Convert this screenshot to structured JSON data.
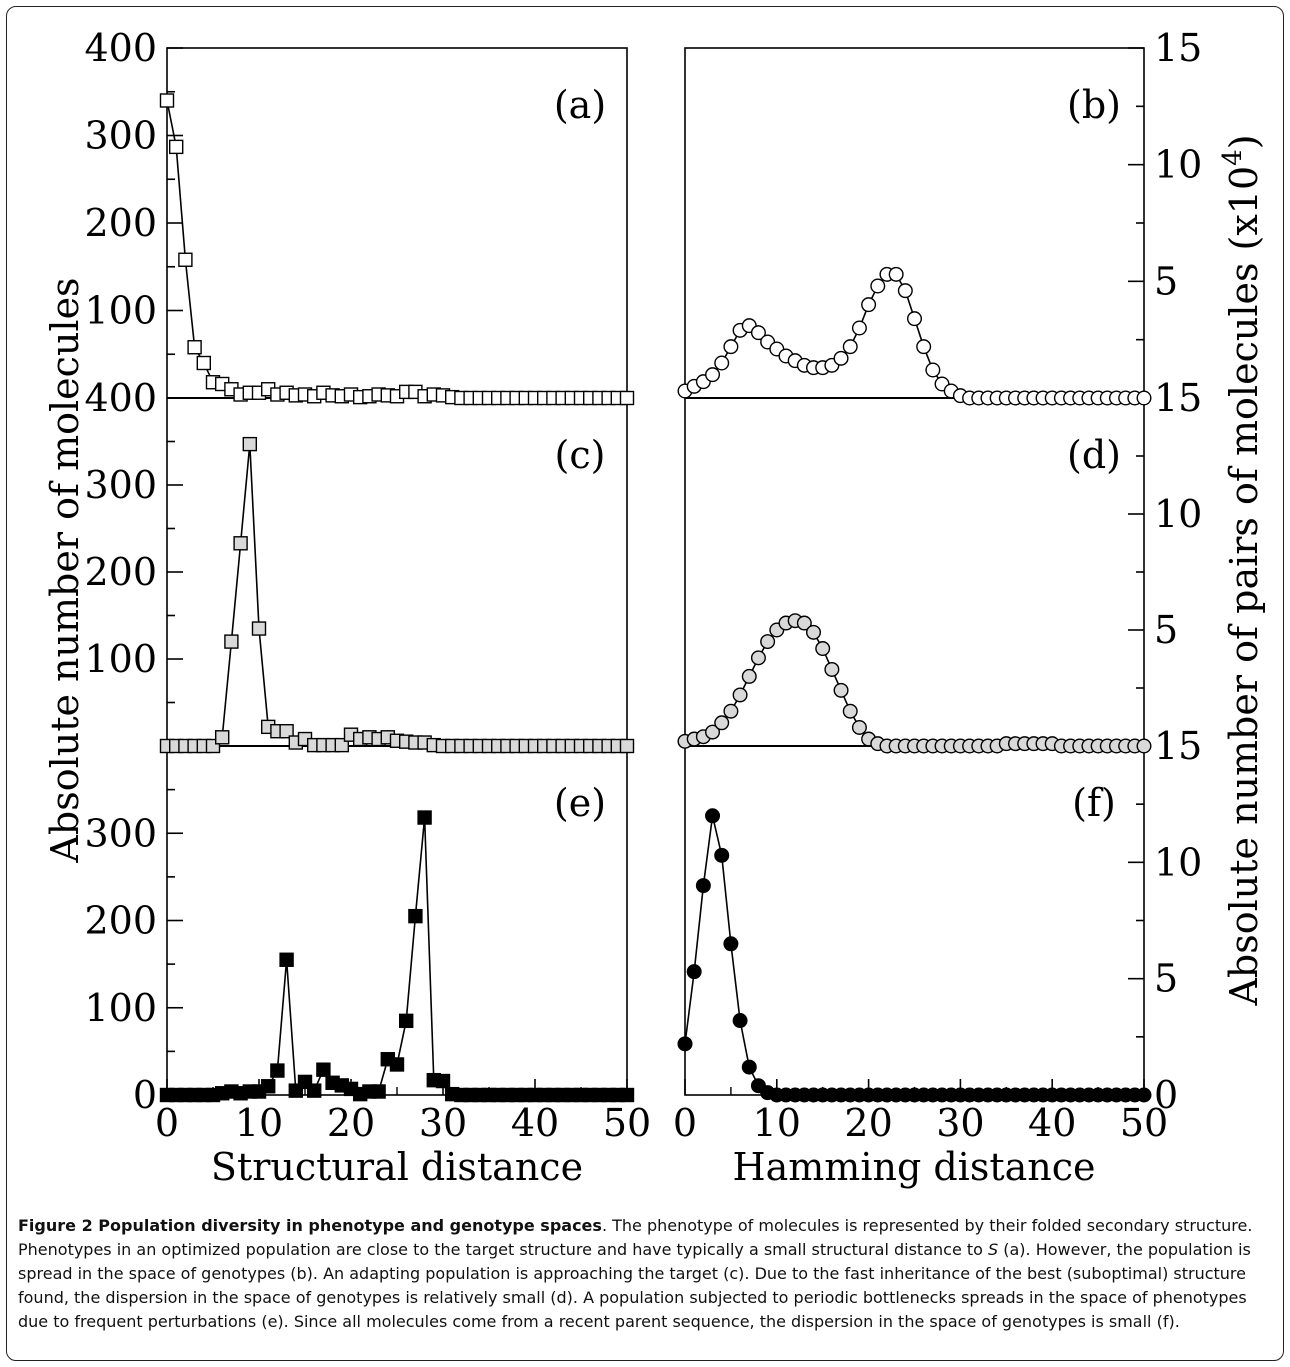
{
  "chart_data": {
    "type": "line",
    "x_label_left": "Structural distance",
    "x_label_right": "Hamming distance",
    "y_label_left": "Absolute number of molecules",
    "y_label_right": "Absolute number of pairs of molecules (x10",
    "y_label_right_exp": "4",
    "y_label_right_close": ")",
    "xlim": [
      0,
      50
    ],
    "left_ylim": [
      0,
      400
    ],
    "right_ylim": [
      0,
      15
    ],
    "x_ticks": [
      "0",
      "10",
      "20",
      "30",
      "40",
      "50"
    ],
    "left_y_ticks_top": [
      "400",
      "300",
      "200",
      "100"
    ],
    "left_y_ticks_mid": [
      "400",
      "300",
      "200",
      "100"
    ],
    "left_y_ticks_bottom": [
      "300",
      "200",
      "100",
      "0"
    ],
    "right_y_ticks_top": [
      "15",
      "10",
      "5"
    ],
    "right_y_ticks_mid": [
      "15",
      "10",
      "5"
    ],
    "right_y_ticks_bottom": [
      "15",
      "10",
      "5",
      "0"
    ],
    "panels": [
      {
        "label": "(a)",
        "side": "left",
        "row": 0,
        "marker": "square",
        "fill": "#ffffff",
        "x": [
          0,
          1,
          2,
          3,
          4,
          5,
          6,
          7,
          8,
          9,
          10,
          11,
          12,
          13,
          14,
          15,
          16,
          17,
          18,
          19,
          20,
          21,
          22,
          23,
          24,
          25,
          26,
          27,
          28,
          29,
          30,
          31,
          32,
          33,
          34,
          35,
          36,
          37,
          38,
          39,
          40,
          41,
          42,
          43,
          44,
          45,
          46,
          47,
          48,
          49,
          50
        ],
        "y": [
          340,
          287,
          158,
          58,
          40,
          18,
          16,
          10,
          4,
          6,
          6,
          10,
          4,
          6,
          3,
          4,
          2,
          6,
          3,
          2,
          4,
          1,
          2,
          4,
          3,
          2,
          7,
          7,
          2,
          4,
          3,
          1,
          0,
          0,
          0,
          0,
          0,
          0,
          0,
          0,
          0,
          0,
          0,
          0,
          0,
          0,
          0,
          0,
          0,
          0,
          0
        ]
      },
      {
        "label": "(b)",
        "side": "right",
        "row": 0,
        "marker": "circle",
        "fill": "#ffffff",
        "x": [
          0,
          1,
          2,
          3,
          4,
          5,
          6,
          7,
          8,
          9,
          10,
          11,
          12,
          13,
          14,
          15,
          16,
          17,
          18,
          19,
          20,
          21,
          22,
          23,
          24,
          25,
          26,
          27,
          28,
          29,
          30,
          31,
          32,
          33,
          34,
          35,
          36,
          37,
          38,
          39,
          40,
          41,
          42,
          43,
          44,
          45,
          46,
          47,
          48,
          49,
          50
        ],
        "y": [
          0.3,
          0.5,
          0.7,
          1.0,
          1.5,
          2.2,
          2.9,
          3.1,
          2.8,
          2.4,
          2.1,
          1.8,
          1.6,
          1.4,
          1.3,
          1.3,
          1.4,
          1.7,
          2.2,
          3.0,
          4.0,
          4.8,
          5.3,
          5.3,
          4.6,
          3.4,
          2.2,
          1.2,
          0.6,
          0.3,
          0.1,
          0,
          0,
          0,
          0,
          0,
          0,
          0,
          0,
          0,
          0,
          0,
          0,
          0,
          0,
          0,
          0,
          0,
          0,
          0,
          0
        ]
      },
      {
        "label": "(c)",
        "side": "left",
        "row": 1,
        "marker": "square",
        "fill": "#d9d9d9",
        "x": [
          0,
          1,
          2,
          3,
          4,
          5,
          6,
          7,
          8,
          9,
          10,
          11,
          12,
          13,
          14,
          15,
          16,
          17,
          18,
          19,
          20,
          21,
          22,
          23,
          24,
          25,
          26,
          27,
          28,
          29,
          30,
          31,
          32,
          33,
          34,
          35,
          36,
          37,
          38,
          39,
          40,
          41,
          42,
          43,
          44,
          45,
          46,
          47,
          48,
          49,
          50
        ],
        "y": [
          0,
          0,
          0,
          0,
          0,
          0,
          10,
          120,
          233,
          347,
          135,
          22,
          17,
          17,
          4,
          8,
          1,
          1,
          1,
          1,
          13,
          8,
          10,
          8,
          10,
          6,
          5,
          4,
          4,
          1,
          0,
          0,
          0,
          0,
          0,
          0,
          0,
          0,
          0,
          0,
          0,
          0,
          0,
          0,
          0,
          0,
          0,
          0,
          0,
          0,
          0
        ]
      },
      {
        "label": "(d)",
        "side": "right",
        "row": 1,
        "marker": "circle",
        "fill": "#d9d9d9",
        "x": [
          0,
          1,
          2,
          3,
          4,
          5,
          6,
          7,
          8,
          9,
          10,
          11,
          12,
          13,
          14,
          15,
          16,
          17,
          18,
          19,
          20,
          21,
          22,
          23,
          24,
          25,
          26,
          27,
          28,
          29,
          30,
          31,
          32,
          33,
          34,
          35,
          36,
          37,
          38,
          39,
          40,
          41,
          42,
          43,
          44,
          45,
          46,
          47,
          48,
          49,
          50
        ],
        "y": [
          0.2,
          0.3,
          0.4,
          0.6,
          1.0,
          1.5,
          2.2,
          3.0,
          3.8,
          4.5,
          5.0,
          5.3,
          5.4,
          5.3,
          4.9,
          4.2,
          3.3,
          2.4,
          1.5,
          0.8,
          0.3,
          0.1,
          0,
          0,
          0,
          0,
          0,
          0,
          0,
          0,
          0,
          0,
          0,
          0,
          0,
          0.1,
          0.1,
          0.1,
          0.1,
          0.1,
          0.1,
          0,
          0,
          0,
          0,
          0,
          0,
          0,
          0,
          0,
          0
        ]
      },
      {
        "label": "(e)",
        "side": "left",
        "row": 2,
        "marker": "square",
        "fill": "#000000",
        "x": [
          0,
          1,
          2,
          3,
          4,
          5,
          6,
          7,
          8,
          9,
          10,
          11,
          12,
          13,
          14,
          15,
          16,
          17,
          18,
          19,
          20,
          21,
          22,
          23,
          24,
          25,
          26,
          27,
          28,
          29,
          30,
          31,
          32,
          33,
          34,
          35,
          36,
          37,
          38,
          39,
          40,
          41,
          42,
          43,
          44,
          45,
          46,
          47,
          48,
          49,
          50
        ],
        "y": [
          0,
          0,
          0,
          0,
          0,
          0,
          2,
          4,
          2,
          4,
          4,
          10,
          28,
          155,
          5,
          15,
          5,
          29,
          14,
          11,
          7,
          1,
          4,
          4,
          41,
          35,
          85,
          205,
          318,
          17,
          16,
          1,
          0,
          0,
          0,
          0,
          0,
          0,
          0,
          0,
          0,
          0,
          0,
          0,
          0,
          0,
          0,
          0,
          0,
          0,
          0
        ]
      },
      {
        "label": "(f)",
        "side": "right",
        "row": 2,
        "marker": "circle",
        "fill": "#000000",
        "x": [
          0,
          1,
          2,
          3,
          4,
          5,
          6,
          7,
          8,
          9,
          10,
          11,
          12,
          13,
          14,
          15,
          16,
          17,
          18,
          19,
          20,
          21,
          22,
          23,
          24,
          25,
          26,
          27,
          28,
          29,
          30,
          31,
          32,
          33,
          34,
          35,
          36,
          37,
          38,
          39,
          40,
          41,
          42,
          43,
          44,
          45,
          46,
          47,
          48,
          49,
          50
        ],
        "y": [
          2.2,
          5.3,
          9.0,
          12.0,
          10.3,
          6.5,
          3.2,
          1.2,
          0.4,
          0.1,
          0,
          0,
          0,
          0,
          0,
          0,
          0,
          0,
          0,
          0,
          0,
          0,
          0,
          0,
          0,
          0,
          0,
          0,
          0,
          0,
          0,
          0,
          0,
          0,
          0,
          0,
          0,
          0,
          0,
          0,
          0,
          0,
          0,
          0,
          0,
          0,
          0,
          0,
          0,
          0,
          0
        ]
      }
    ]
  },
  "caption": {
    "title": "Figure 2 Population diversity in phenotype and genotype spaces",
    "body": ". The phenotype of molecules is represented by their folded secondary structure. Phenotypes in an optimized population are close to the target structure and have typically a small structural distance to ",
    "target_symbol": "S",
    "rest": " (a). However, the population is spread in the space of genotypes (b). An adapting population is approaching the target (c). Due to the fast inheritance of the best (suboptimal) structure found, the dispersion in the space of genotypes is relatively small (d). A population subjected to periodic bottlenecks spreads in the space of phenotypes due to frequent perturbations (e). Since all molecules come from a recent parent sequence, the dispersion in the space of genotypes is small (f)."
  }
}
